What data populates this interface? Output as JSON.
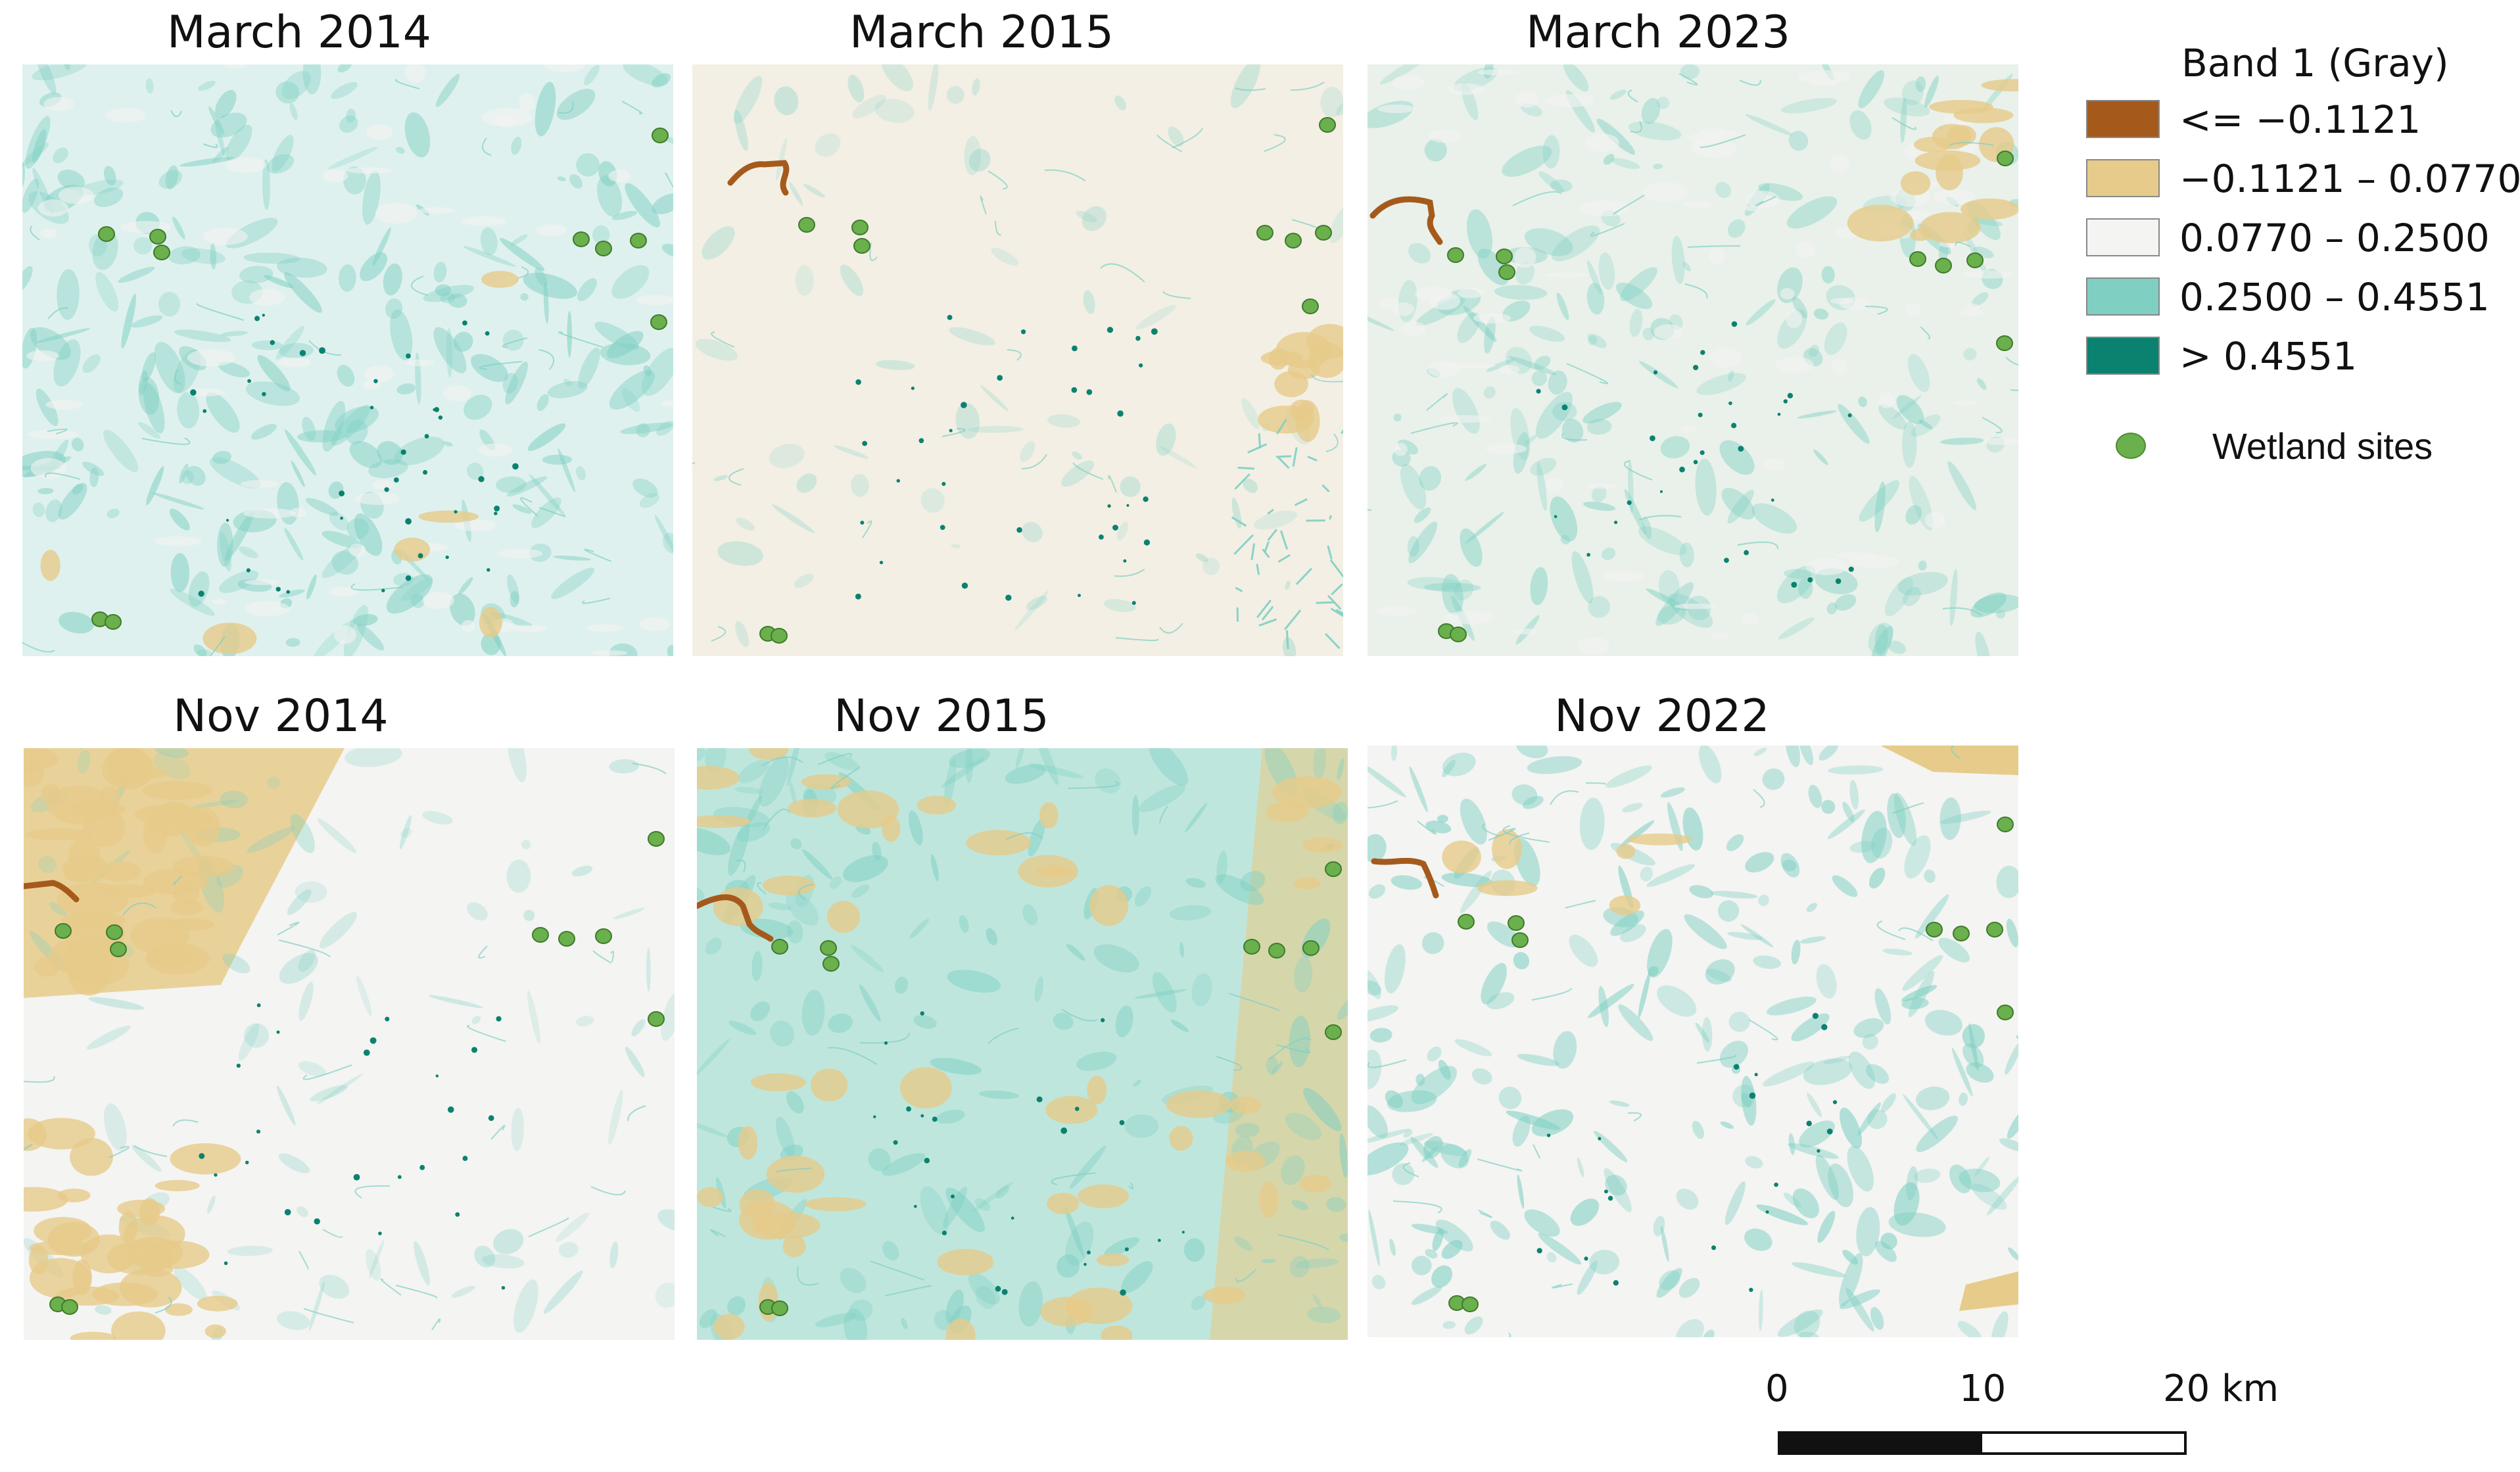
{
  "panels": [
    {
      "title": "March 2014",
      "base": "#dff1ee",
      "variant": "mar2014"
    },
    {
      "title": "March 2015",
      "base": "#f3efe5",
      "variant": "mar2015"
    },
    {
      "title": "March 2023",
      "base": "#e9f1ea",
      "variant": "mar2023"
    },
    {
      "title": "Nov 2014",
      "base": "#f4f4f2",
      "variant": "nov2014"
    },
    {
      "title": "Nov 2015",
      "base": "#bfe6dd",
      "variant": "nov2015"
    },
    {
      "title": "Nov 2022",
      "base": "#f4f4f2",
      "variant": "nov2022"
    }
  ],
  "legend": {
    "title": "Band 1 (Gray)",
    "classes": [
      {
        "label": "<= −0.1121",
        "color": "#a55a1c"
      },
      {
        "label": "−0.1121 – 0.0770",
        "color": "#e6cb8a"
      },
      {
        "label": "0.0770 – 0.2500",
        "color": "#f4f4f2"
      },
      {
        "label": "0.2500 – 0.4551",
        "color": "#7fd0c3"
      },
      {
        "label": "> 0.4551",
        "color": "#0b8270"
      }
    ],
    "sites_label": "Wetland sites",
    "sites_color": "#6ab04c"
  },
  "scale": {
    "labels": [
      "0",
      "10",
      "20 km"
    ]
  }
}
